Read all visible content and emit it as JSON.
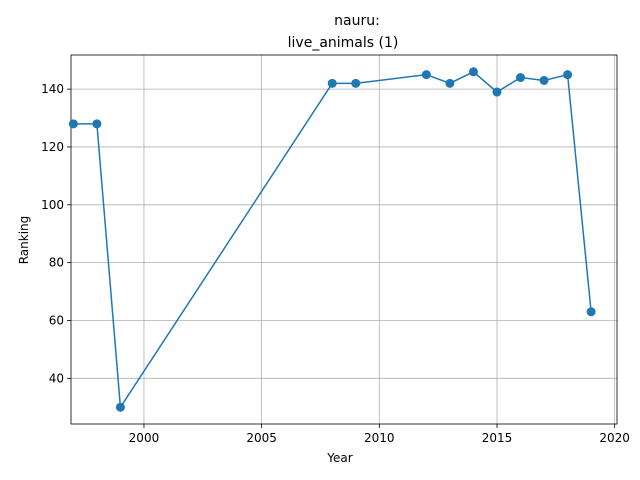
{
  "chart_data": {
    "type": "line",
    "title_line1": "nauru:",
    "title_line2": "live_animals (1)",
    "xlabel": "Year",
    "ylabel": "Ranking",
    "xlim": [
      1996.9,
      2020.1
    ],
    "ylim": [
      24.2,
      151.8
    ],
    "xticks": [
      2000,
      2005,
      2010,
      2015,
      2020
    ],
    "yticks": [
      40,
      60,
      80,
      100,
      120,
      140
    ],
    "grid": true,
    "line_color": "#1f77b4",
    "series": [
      {
        "x": [
          1997,
          1998,
          1999,
          2008,
          2009,
          2012,
          2013,
          2014,
          2015,
          2016,
          2017,
          2018,
          2019
        ],
        "y": [
          128,
          128,
          30,
          142,
          142,
          145,
          142,
          146,
          139,
          144,
          143,
          145,
          63
        ]
      }
    ]
  }
}
